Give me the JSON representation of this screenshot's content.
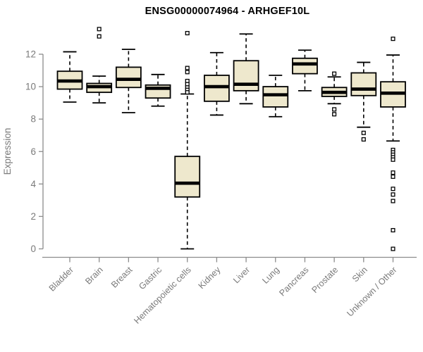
{
  "title": "ENSG00000074964 - ARHGEF10L",
  "colors": {
    "background": "#FFFFFF",
    "box_fill": "#EEE8CD",
    "box_stroke": "#000000",
    "median_stroke": "#000000",
    "whisker_stroke": "#000000",
    "outlier_stroke": "#000000",
    "axis_line": "#8C8C8C",
    "tick_label": "#7A7A7A",
    "axis_label": "#7A7A7A",
    "title_color": "#000000"
  },
  "chart_data": {
    "type": "boxplot",
    "title": "ENSG00000074964 - ARHGEF10L",
    "xlabel": "",
    "ylabel": "Expression",
    "ylim": [
      0,
      12
    ],
    "yticks": [
      0,
      2,
      4,
      6,
      8,
      10,
      12
    ],
    "grid": false,
    "legend": null,
    "categories": [
      "Bladder",
      "Brain",
      "Breast",
      "Gastric",
      "Hematopoietic cells",
      "Kidney",
      "Liver",
      "Lung",
      "Pancreas",
      "Prostate",
      "Skin",
      "Unknown / Other"
    ],
    "series": [
      {
        "name": "Bladder",
        "whisker_low": 9.05,
        "q1": 9.85,
        "median": 10.35,
        "q3": 10.95,
        "whisker_high": 12.15,
        "outliers": []
      },
      {
        "name": "Brain",
        "whisker_low": 9.0,
        "q1": 9.65,
        "median": 10.0,
        "q3": 10.2,
        "whisker_high": 10.65,
        "outliers": [
          13.55,
          13.1
        ]
      },
      {
        "name": "Breast",
        "whisker_low": 8.4,
        "q1": 9.95,
        "median": 10.45,
        "q3": 11.2,
        "whisker_high": 12.3,
        "outliers": []
      },
      {
        "name": "Gastric",
        "whisker_low": 8.8,
        "q1": 9.3,
        "median": 9.9,
        "q3": 10.1,
        "whisker_high": 10.75,
        "outliers": []
      },
      {
        "name": "Hematopoietic cells",
        "whisker_low": 0.0,
        "q1": 3.2,
        "median": 4.05,
        "q3": 5.7,
        "whisker_high": 9.55,
        "outliers": [
          13.3,
          11.15,
          10.9,
          10.35,
          10.15,
          9.95,
          9.8,
          9.65
        ]
      },
      {
        "name": "Kidney",
        "whisker_low": 8.25,
        "q1": 9.1,
        "median": 10.0,
        "q3": 10.7,
        "whisker_high": 12.1,
        "outliers": []
      },
      {
        "name": "Liver",
        "whisker_low": 8.95,
        "q1": 9.75,
        "median": 10.15,
        "q3": 11.6,
        "whisker_high": 13.25,
        "outliers": []
      },
      {
        "name": "Lung",
        "whisker_low": 8.15,
        "q1": 8.75,
        "median": 9.5,
        "q3": 10.0,
        "whisker_high": 10.7,
        "outliers": []
      },
      {
        "name": "Pancreas",
        "whisker_low": 9.75,
        "q1": 10.8,
        "median": 11.4,
        "q3": 11.75,
        "whisker_high": 12.25,
        "outliers": []
      },
      {
        "name": "Prostate",
        "whisker_low": 8.95,
        "q1": 9.4,
        "median": 9.65,
        "q3": 9.95,
        "whisker_high": 10.6,
        "outliers": [
          10.8,
          8.6,
          8.3
        ]
      },
      {
        "name": "Skin",
        "whisker_low": 7.5,
        "q1": 9.45,
        "median": 9.85,
        "q3": 10.85,
        "whisker_high": 11.5,
        "outliers": [
          7.15,
          6.75
        ]
      },
      {
        "name": "Unknown / Other",
        "whisker_low": 6.65,
        "q1": 8.75,
        "median": 9.6,
        "q3": 10.3,
        "whisker_high": 11.95,
        "outliers": [
          12.95,
          6.1,
          5.95,
          5.8,
          5.65,
          5.5,
          4.7,
          4.45,
          3.7,
          3.35,
          2.95,
          1.15,
          0.0
        ]
      }
    ]
  }
}
